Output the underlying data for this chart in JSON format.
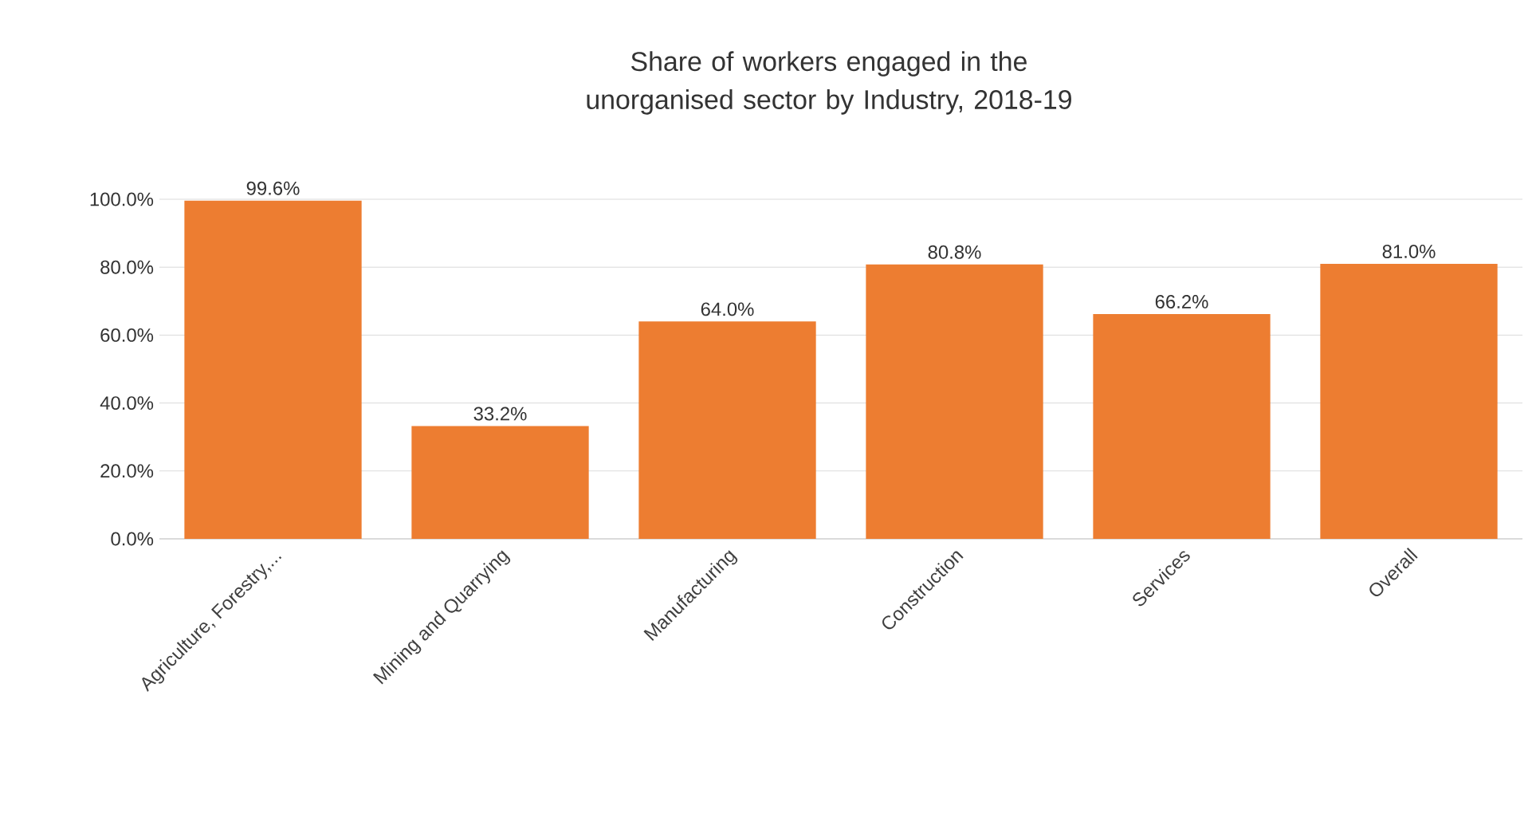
{
  "chart_data": {
    "type": "bar",
    "title": "Share of workers engaged in the unorganised sector by Industry, 2018-19",
    "categories": [
      "Agriculture, Forestry,...",
      "Mining and Quarrying",
      "Manufacturing",
      "Construction",
      "Services",
      "Overall"
    ],
    "values": [
      99.6,
      33.2,
      64.0,
      80.8,
      66.2,
      81.0
    ],
    "value_labels": [
      "99.6%",
      "33.2%",
      "64.0%",
      "80.8%",
      "66.2%",
      "81.0%"
    ],
    "color": "#ed7d31",
    "ylim": [
      0,
      100
    ],
    "yticks": [
      {
        "value": 0,
        "label": "0.0%"
      },
      {
        "value": 20,
        "label": "20.0%"
      },
      {
        "value": 40,
        "label": "40.0%"
      },
      {
        "value": 60,
        "label": "60.0%"
      },
      {
        "value": 80,
        "label": "80.0%"
      },
      {
        "value": 100,
        "label": "100.0%"
      }
    ],
    "grid": "y"
  }
}
